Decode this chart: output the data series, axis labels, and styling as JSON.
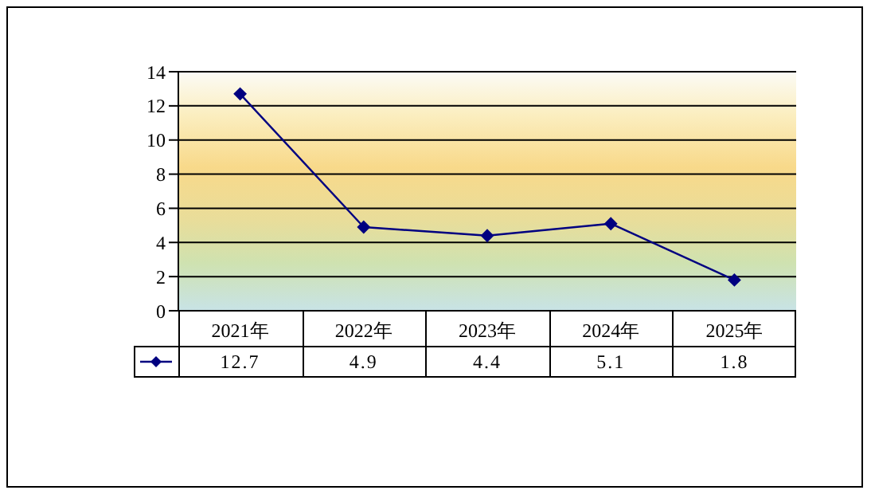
{
  "chart_data": {
    "type": "line",
    "categories": [
      "2021年",
      "2022年",
      "2023年",
      "2024年",
      "2025年"
    ],
    "series": [
      {
        "color": "#000080",
        "values": [
          12.7,
          4.9,
          4.4,
          5.1,
          1.8
        ]
      }
    ],
    "ylim": [
      0,
      14
    ],
    "yticks": [
      0,
      2,
      4,
      6,
      8,
      10,
      12,
      14
    ],
    "grid": "y",
    "marker": "diamond",
    "line_style": "solid",
    "data_labels": true
  }
}
